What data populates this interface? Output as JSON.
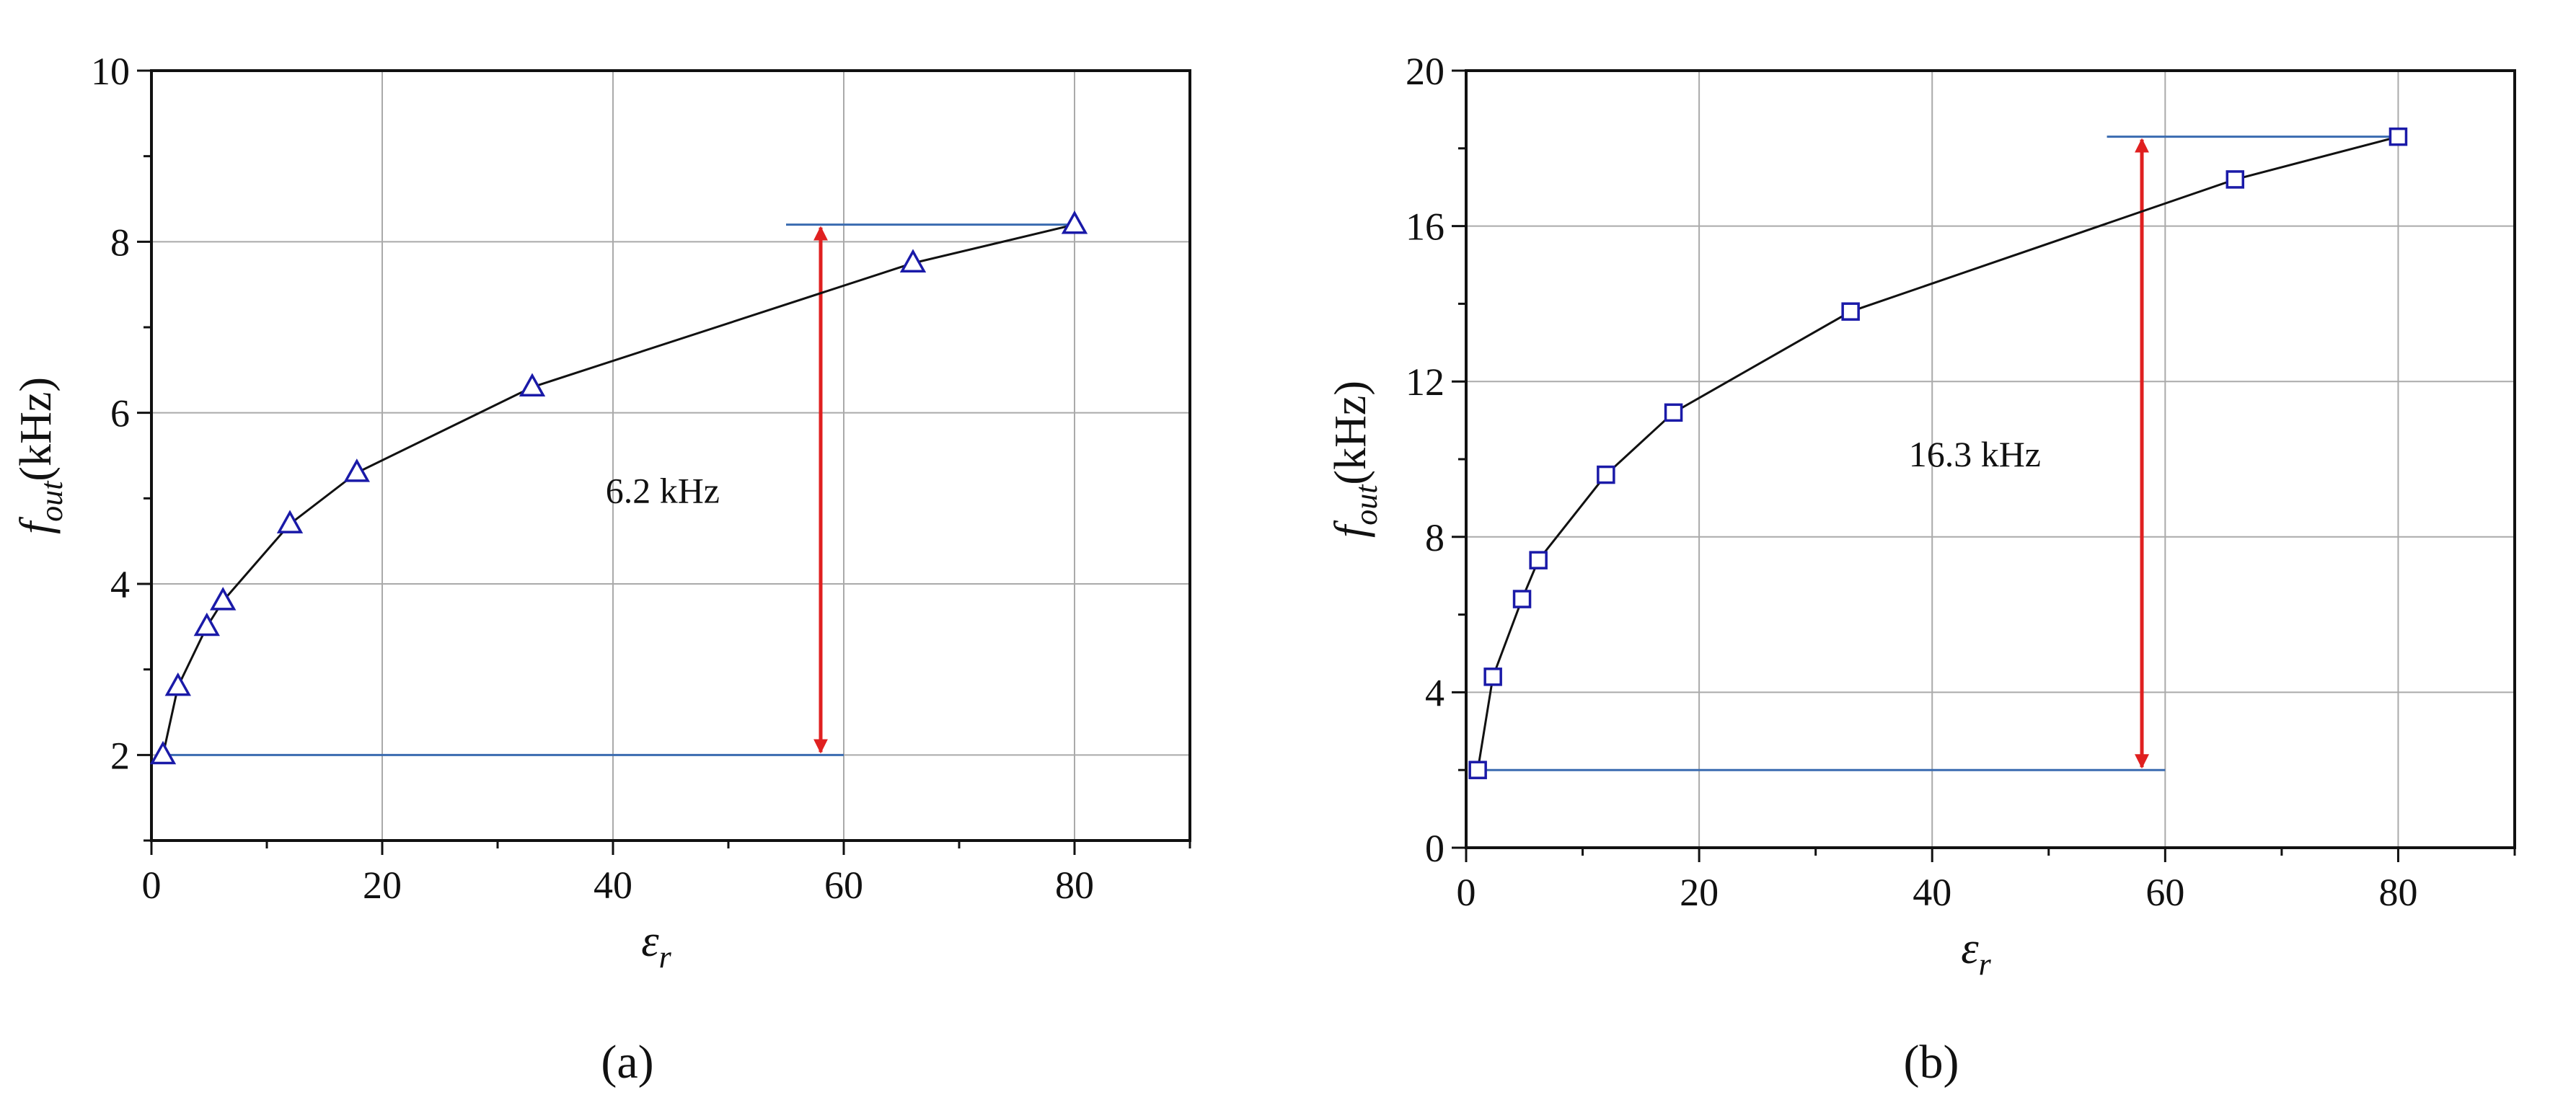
{
  "chart_data": [
    {
      "type": "line",
      "panel_label": "(a)",
      "xlabel": "ε",
      "xlabel_sub": "r",
      "ylabel": "f",
      "ylabel_sub": "out",
      "ylabel_unit": "(kHz)",
      "xlim": [
        0,
        90
      ],
      "ylim": [
        1,
        10
      ],
      "x_ticks": [
        0,
        20,
        40,
        60,
        80
      ],
      "y_ticks": [
        2,
        4,
        6,
        8,
        10
      ],
      "grid": true,
      "marker": "triangle",
      "marker_color": "#1a1aa8",
      "line_color": "#111111",
      "series": [
        {
          "x": [
            1,
            2.3,
            4.8,
            6.2,
            12,
            17.8,
            33,
            66,
            80
          ],
          "y": [
            2.0,
            2.8,
            3.5,
            3.8,
            4.7,
            5.3,
            6.3,
            7.75,
            8.2
          ]
        }
      ],
      "annotation": {
        "text": "6.2 kHz",
        "arrow_x": 58,
        "from_y": 2.0,
        "to_y": 8.2,
        "arrow_color": "#e02020",
        "ref_line_color": "#3a6bb0"
      }
    },
    {
      "type": "line",
      "panel_label": "(b)",
      "xlabel": "ε",
      "xlabel_sub": "r",
      "ylabel": "f",
      "ylabel_sub": "out",
      "ylabel_unit": "(kHz)",
      "xlim": [
        0,
        90
      ],
      "ylim": [
        0,
        20
      ],
      "x_ticks": [
        0,
        20,
        40,
        60,
        80
      ],
      "y_ticks": [
        0,
        4,
        8,
        12,
        16,
        20
      ],
      "grid": true,
      "marker": "square",
      "marker_color": "#1a1aa8",
      "line_color": "#111111",
      "series": [
        {
          "x": [
            1,
            2.3,
            4.8,
            6.2,
            12,
            17.8,
            33,
            66,
            80
          ],
          "y": [
            2.0,
            4.4,
            6.4,
            7.4,
            9.6,
            11.2,
            13.8,
            17.2,
            18.3
          ]
        }
      ],
      "annotation": {
        "text": "16.3 kHz",
        "arrow_x": 58,
        "from_y": 2.0,
        "to_y": 18.3,
        "arrow_color": "#e02020",
        "ref_line_color": "#3a6bb0"
      }
    }
  ]
}
